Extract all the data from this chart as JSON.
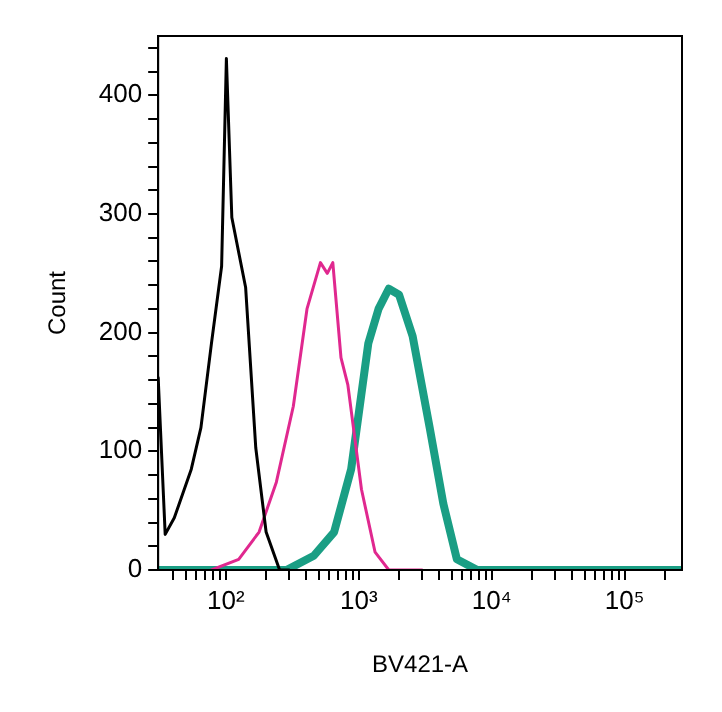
{
  "chart_data": {
    "type": "line",
    "xlabel": "BV421-A",
    "ylabel": "Count",
    "log": "x",
    "xlim": [
      31,
      270000
    ],
    "ylim": [
      0,
      450
    ],
    "xticks": [
      {
        "value": 40,
        "label": null
      },
      {
        "value": 50,
        "label": null
      },
      {
        "value": 60,
        "label": null
      },
      {
        "value": 70,
        "label": null
      },
      {
        "value": 80,
        "label": null
      },
      {
        "value": 90,
        "label": null
      },
      {
        "value": 100,
        "label": "10²"
      },
      {
        "value": 200,
        "label": null
      },
      {
        "value": 300,
        "label": null
      },
      {
        "value": 400,
        "label": null
      },
      {
        "value": 500,
        "label": null
      },
      {
        "value": 600,
        "label": null
      },
      {
        "value": 700,
        "label": null
      },
      {
        "value": 800,
        "label": null
      },
      {
        "value": 900,
        "label": null
      },
      {
        "value": 1000,
        "label": "10³"
      },
      {
        "value": 2000,
        "label": null
      },
      {
        "value": 3000,
        "label": null
      },
      {
        "value": 4000,
        "label": null
      },
      {
        "value": 5000,
        "label": null
      },
      {
        "value": 6000,
        "label": null
      },
      {
        "value": 7000,
        "label": null
      },
      {
        "value": 8000,
        "label": null
      },
      {
        "value": 9000,
        "label": null
      },
      {
        "value": 10000,
        "label": "10⁴"
      },
      {
        "value": 20000,
        "label": null
      },
      {
        "value": 30000,
        "label": null
      },
      {
        "value": 40000,
        "label": null
      },
      {
        "value": 50000,
        "label": null
      },
      {
        "value": 60000,
        "label": null
      },
      {
        "value": 70000,
        "label": null
      },
      {
        "value": 80000,
        "label": null
      },
      {
        "value": 90000,
        "label": null
      },
      {
        "value": 100000,
        "label": "10⁵"
      },
      {
        "value": 200000,
        "label": null
      }
    ],
    "yticks": [
      0,
      {
        "value": 20,
        "label": null
      },
      {
        "value": 40,
        "label": null
      },
      {
        "value": 60,
        "label": null
      },
      {
        "value": 80,
        "label": null
      },
      100,
      {
        "value": 120,
        "label": null
      },
      {
        "value": 140,
        "label": null
      },
      {
        "value": 160,
        "label": null
      },
      {
        "value": 180,
        "label": null
      },
      200,
      {
        "value": 220,
        "label": null
      },
      {
        "value": 240,
        "label": null
      },
      {
        "value": 260,
        "label": null
      },
      {
        "value": 280,
        "label": null
      },
      300,
      {
        "value": 320,
        "label": null
      },
      {
        "value": 340,
        "label": null
      },
      {
        "value": 360,
        "label": null
      },
      {
        "value": 380,
        "label": null
      },
      400,
      {
        "value": 420,
        "label": null
      },
      {
        "value": 440,
        "label": null
      }
    ],
    "marker": "none",
    "grid": false,
    "legend": false,
    "series": [
      {
        "color": "#000000",
        "x": [
          31,
          35,
          41,
          55,
          65,
          78,
          93,
          101,
          111,
          141,
          168,
          201,
          254,
          300
        ],
        "values": [
          162,
          30,
          44,
          85,
          120,
          191,
          256,
          431,
          297,
          238,
          103,
          32,
          0,
          0
        ]
      },
      {
        "color": "#e0288f",
        "x": [
          78,
          125,
          178,
          240,
          322,
          408,
          515,
          580,
          638,
          735,
          828,
          1048,
          1327,
          1682,
          3000
        ],
        "values": [
          0,
          9,
          32,
          74,
          138,
          220,
          259,
          250,
          259,
          179,
          156,
          68,
          15,
          0,
          0
        ]
      },
      {
        "color": "#1a9e84",
        "x": [
          31,
          286,
          459,
          653,
          877,
          1180,
          1409,
          1682,
          2010,
          2543,
          3414,
          4324,
          5470,
          7800,
          270000
        ],
        "values": [
          0,
          0,
          12,
          32,
          85,
          191,
          220,
          237,
          232,
          197,
          120,
          56,
          9,
          0,
          0
        ]
      }
    ]
  }
}
